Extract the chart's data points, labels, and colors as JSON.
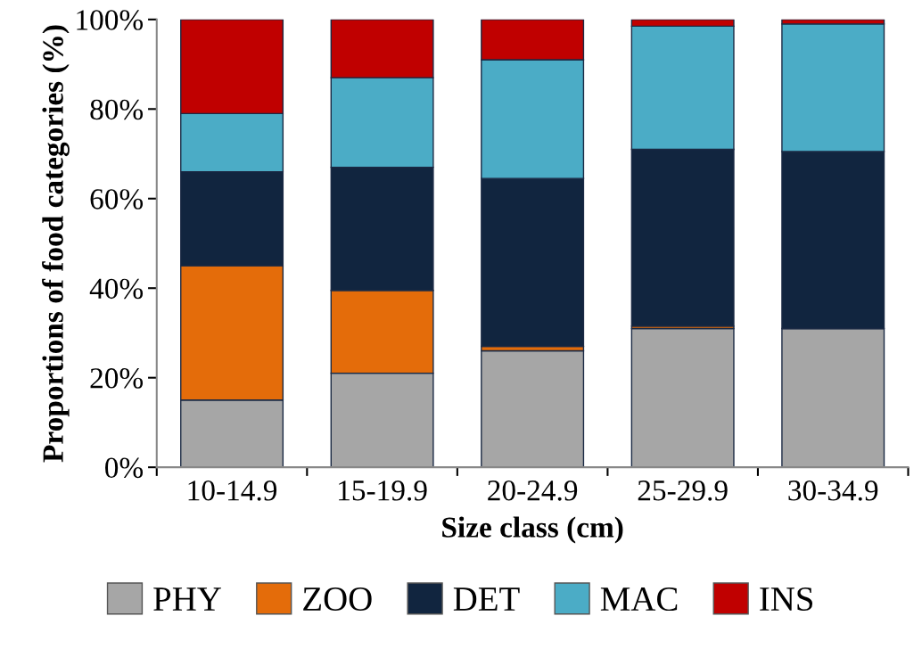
{
  "chart_data": {
    "type": "bar",
    "stacked": true,
    "xlabel": "Size class (cm)",
    "ylabel": "Proportions of food categories (%)",
    "categories": [
      "10-14.9",
      "15-19.9",
      "20-24.9",
      "25-29.9",
      "30-34.9"
    ],
    "series": [
      {
        "name": "PHY",
        "color": "#a6a6a6",
        "values": [
          15,
          21,
          26,
          31,
          31
        ]
      },
      {
        "name": "ZOO",
        "color": "#e46c0a",
        "values": [
          30,
          18.5,
          1,
          0.5,
          0
        ]
      },
      {
        "name": "DET",
        "color": "#11253f",
        "values": [
          21,
          27.5,
          37.5,
          39.5,
          39.5
        ]
      },
      {
        "name": "MAC",
        "color": "#4bacc6",
        "values": [
          13,
          20,
          26.5,
          27.5,
          28.5
        ]
      },
      {
        "name": "INS",
        "color": "#c00000",
        "values": [
          21,
          13,
          9,
          1.5,
          1
        ]
      }
    ],
    "ylim": [
      0,
      100
    ],
    "yticks": [
      {
        "value": 0,
        "label": "0%"
      },
      {
        "value": 20,
        "label": "20%"
      },
      {
        "value": 40,
        "label": "40%"
      },
      {
        "value": 60,
        "label": "60%"
      },
      {
        "value": 80,
        "label": "80%"
      },
      {
        "value": 100,
        "label": "100%"
      }
    ],
    "grid": false,
    "legend": "bottom"
  }
}
